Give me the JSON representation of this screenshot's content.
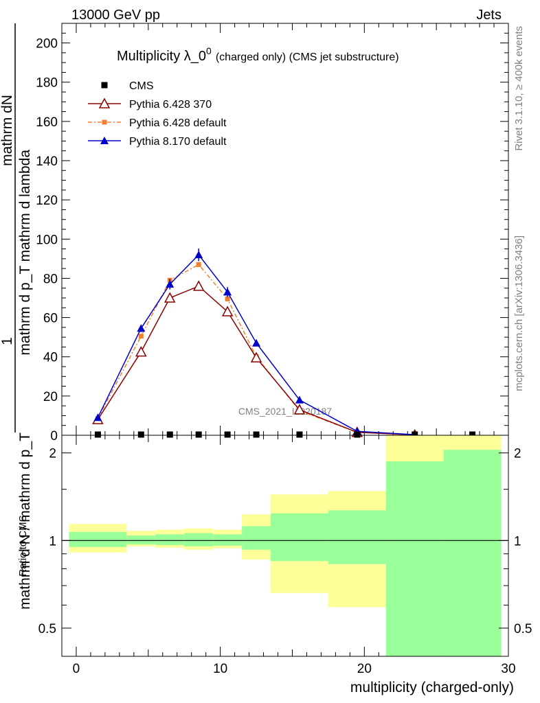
{
  "header": {
    "left": "13000 GeV pp",
    "right": "Jets"
  },
  "side_labels": {
    "rivet": "Rivet 3.1.10, ≥ 400k events",
    "mcplots": "mcplots.cern.ch [arXiv:1306.3436]"
  },
  "watermark": "CMS_2021_I1920187",
  "colors": {
    "cms": "#000000",
    "py6_370": "#8b0000",
    "py6_default": "#f08030",
    "py8": "#0000cc",
    "band_outer": "#ffff99",
    "band_inner": "#99ff99"
  },
  "chart_data": [
    {
      "type": "line",
      "title": "Multiplicity λ_0^0",
      "title_main": "Multiplicity λ_0",
      "title_sup": "0",
      "title_suffix": "(charged only) (CMS jet substructure)",
      "ylabel_top": "1",
      "ylabel_num": "mathrm dN / mathrm d N / mathrm d p_T mathrm d p_T mathrm d lambda",
      "ylabel_line1": "mathrm dN",
      "ylabel_line2": "mathrm d p_T mathrm d lambda",
      "ylabel_line3": "mathrm d N / mathrm d p_T",
      "ylabel_lines": [
        "mathrm d N / mathrm d p",
        "mathrm d p",
        "mathrm d lambda"
      ],
      "ylim": [
        0,
        210
      ],
      "xlim": [
        -1,
        30
      ],
      "yticks": [
        "0",
        "20",
        "40",
        "60",
        "80",
        "100",
        "120",
        "140",
        "160",
        "180",
        "200"
      ],
      "legend": "top-left",
      "series": [
        {
          "name": "CMS",
          "marker": "square",
          "x": [
            1.5,
            4.5,
            6.5,
            8.5,
            10.5,
            12.5,
            15.5,
            19.5,
            23.5,
            27.5
          ],
          "y": [
            0,
            0,
            0,
            0,
            0,
            0,
            0,
            0,
            0,
            0
          ]
        },
        {
          "name": "Pythia 6.428 370",
          "marker": "open-triangle",
          "x": [
            1.5,
            4.5,
            6.5,
            8.5,
            10.5,
            12.5,
            15.5,
            19.5,
            23.5
          ],
          "y": [
            8,
            42.5,
            70,
            76,
            63,
            39.5,
            13,
            1.5,
            0.2
          ]
        },
        {
          "name": "Pythia 6.428 default",
          "marker": "square",
          "x": [
            1.5,
            4.5,
            6.5,
            8.5,
            10.5,
            12.5,
            15.5,
            19.5,
            23.5
          ],
          "y": [
            8.5,
            50.5,
            79,
            87,
            69.5,
            40,
            12.5,
            1.5,
            0.3
          ]
        },
        {
          "name": "Pythia 8.170 default",
          "marker": "triangle",
          "x": [
            1.5,
            4.5,
            6.5,
            8.5,
            10.5,
            12.5,
            15.5,
            19.5,
            23.5
          ],
          "y": [
            9,
            54.5,
            77,
            92,
            73,
            47,
            18,
            2,
            0.3
          ]
        }
      ]
    },
    {
      "type": "area",
      "ylabel": "Ratio to CMS",
      "xlabel": "multiplicity (charged-only)",
      "log_scale": true,
      "ylim": [
        0.4,
        2.3
      ],
      "xlim": [
        -1,
        30
      ],
      "xticks": [
        "0",
        "10",
        "20",
        "30"
      ],
      "yticks": [
        "0.5",
        "1",
        "2"
      ],
      "bins": [
        {
          "x0": -0.5,
          "x1": 3.5,
          "outer": [
            0.91,
            1.14
          ],
          "inner": [
            0.95,
            1.07
          ]
        },
        {
          "x0": 3.5,
          "x1": 5.5,
          "outer": [
            0.955,
            1.08
          ],
          "inner": [
            0.97,
            1.04
          ]
        },
        {
          "x0": 5.5,
          "x1": 7.5,
          "outer": [
            0.945,
            1.09
          ],
          "inner": [
            0.965,
            1.05
          ]
        },
        {
          "x0": 7.5,
          "x1": 9.5,
          "outer": [
            0.93,
            1.1
          ],
          "inner": [
            0.955,
            1.06
          ]
        },
        {
          "x0": 9.5,
          "x1": 11.5,
          "outer": [
            0.94,
            1.09
          ],
          "inner": [
            0.96,
            1.05
          ]
        },
        {
          "x0": 11.5,
          "x1": 13.5,
          "outer": [
            0.86,
            1.23
          ],
          "inner": [
            0.93,
            1.12
          ]
        },
        {
          "x0": 13.5,
          "x1": 17.5,
          "outer": [
            0.66,
            1.44
          ],
          "inner": [
            0.85,
            1.24
          ]
        },
        {
          "x0": 17.5,
          "x1": 21.5,
          "outer": [
            0.59,
            1.48
          ],
          "inner": [
            0.83,
            1.27
          ]
        },
        {
          "x0": 21.5,
          "x1": 25.5,
          "outer": [
            0.3,
            3.0
          ],
          "inner": [
            0.3,
            1.87
          ]
        },
        {
          "x0": 25.5,
          "x1": 29.5,
          "outer": [
            0.3,
            3.0
          ],
          "inner": [
            0.3,
            2.05
          ]
        }
      ]
    }
  ]
}
